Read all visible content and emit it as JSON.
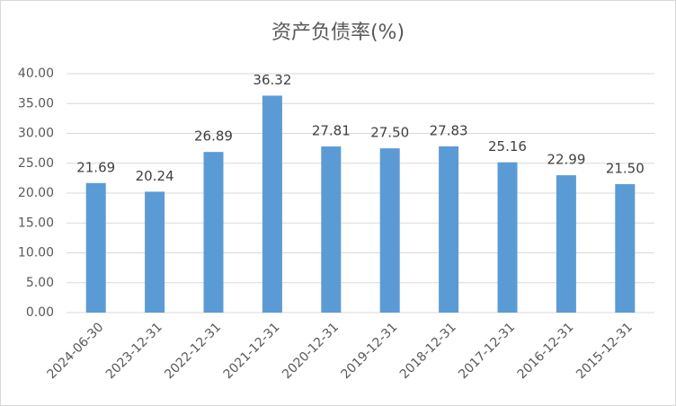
{
  "chart_data": {
    "type": "bar",
    "title": "资产负债率(%)",
    "categories": [
      "2024-06-30",
      "2023-12-31",
      "2022-12-31",
      "2021-12-31",
      "2020-12-31",
      "2019-12-31",
      "2018-12-31",
      "2017-12-31",
      "2016-12-31",
      "2015-12-31"
    ],
    "values": [
      21.69,
      20.24,
      26.89,
      36.32,
      27.81,
      27.5,
      27.83,
      25.16,
      22.99,
      21.5
    ],
    "value_labels": [
      "21.69",
      "20.24",
      "26.89",
      "36.32",
      "27.81",
      "27.50",
      "27.83",
      "25.16",
      "22.99",
      "21.50"
    ],
    "color": "#5b9bd5",
    "ylim": [
      0,
      40
    ],
    "yticks": [
      {
        "value": 0,
        "label": "0.00"
      },
      {
        "value": 5,
        "label": "5.00"
      },
      {
        "value": 10,
        "label": "10.00"
      },
      {
        "value": 15,
        "label": "15.00"
      },
      {
        "value": 20,
        "label": "20.00"
      },
      {
        "value": 25,
        "label": "25.00"
      },
      {
        "value": 30,
        "label": "30.00"
      },
      {
        "value": 35,
        "label": "35.00"
      },
      {
        "value": 40,
        "label": "40.00"
      }
    ],
    "grid": true
  }
}
